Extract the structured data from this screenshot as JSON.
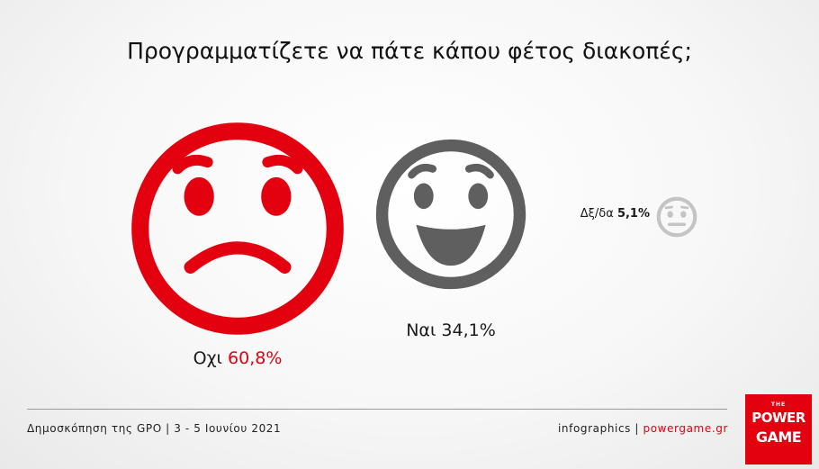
{
  "title": "Προγραμματίζετε να πάτε κάπου φέτος διακοπές;",
  "chart_data": {
    "type": "pictogram",
    "title": "Προγραμματίζετε να πάτε κάπου φέτος διακοπές;",
    "categories": [
      "Οχι",
      "Ναι",
      "Δξ/δα"
    ],
    "values": [
      60.8,
      34.1,
      5.1
    ],
    "value_labels": [
      "60,8%",
      "34,1%",
      "5,1%"
    ],
    "unit": "%",
    "colors": [
      "#e3000f",
      "#5f5f5f",
      "#c4c4c4"
    ],
    "icons": [
      "sad-face-icon",
      "happy-face-icon",
      "neutral-face-icon"
    ]
  },
  "labels": {
    "no": {
      "name": "Οχι",
      "value": "60,8%"
    },
    "yes": {
      "name": "Ναι",
      "value": "34,1%"
    },
    "dk": {
      "name": "Δξ/δα",
      "value": "5,1%"
    }
  },
  "footer": {
    "source": "Δημοσκόπηση της GPO | 3 - 5 Ιουνίου 2021",
    "credit": "infographics | ",
    "site": "powergame.gr"
  },
  "logo": {
    "the": "THE",
    "power": "POWER",
    "game": "GAME"
  }
}
